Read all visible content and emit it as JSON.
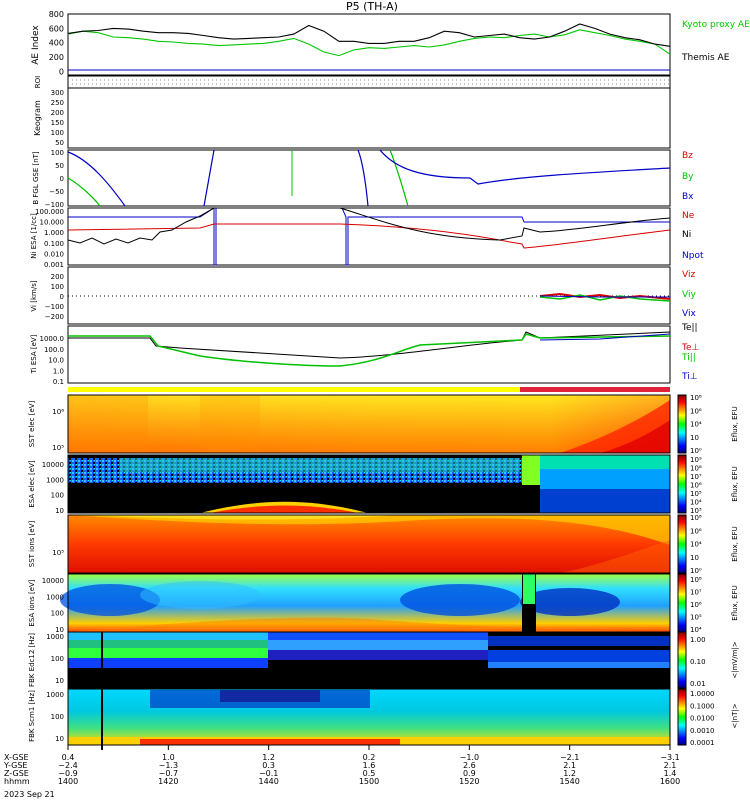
{
  "title": "P5 (TH-A)",
  "chart_data": [
    {
      "type": "line",
      "panel": "ae",
      "ylabel": "AE Index",
      "ylim": [
        -50,
        800
      ],
      "yticks": [
        "800",
        "600",
        "400",
        "200",
        "0"
      ],
      "yticks_v": [
        800,
        600,
        400,
        200,
        0
      ],
      "x": [
        1400,
        1405,
        1410,
        1415,
        1420,
        1425,
        1430,
        1435,
        1440,
        1445,
        1450,
        1455,
        1460,
        1465,
        1470,
        1475,
        1480,
        1485,
        1490,
        1495,
        1500,
        1505,
        1510,
        1515,
        1520,
        1525,
        1530,
        1535,
        1540,
        1545,
        1550,
        1555,
        1560,
        1565,
        1570,
        1575,
        1580,
        1585,
        1590,
        1595,
        1600
      ],
      "series": [
        {
          "name": "Kyoto proxy AE",
          "color": "#00c800",
          "values": [
            520,
            560,
            540,
            480,
            470,
            450,
            420,
            410,
            390,
            380,
            360,
            370,
            380,
            390,
            420,
            460,
            380,
            270,
            220,
            300,
            330,
            320,
            340,
            360,
            340,
            370,
            420,
            460,
            480,
            470,
            500,
            520,
            480,
            510,
            580,
            540,
            500,
            450,
            420,
            380,
            240
          ]
        },
        {
          "name": "Themis AE",
          "color": "#000000",
          "values": [
            530,
            560,
            570,
            600,
            590,
            560,
            540,
            540,
            530,
            500,
            470,
            450,
            460,
            470,
            480,
            520,
            640,
            560,
            420,
            420,
            390,
            390,
            420,
            420,
            470,
            560,
            540,
            480,
            500,
            520,
            470,
            450,
            480,
            560,
            660,
            600,
            520,
            470,
            440,
            380,
            350
          ]
        }
      ]
    },
    {
      "type": "line",
      "panel": "b",
      "ylabel": "B FGL GSE [nT]",
      "ylim": [
        -100,
        100
      ],
      "yticks": [
        "100",
        "50",
        "0",
        "−50",
        "−100"
      ],
      "yticks_v": [
        100,
        50,
        0,
        -50,
        -100
      ],
      "series": [
        {
          "name": "Bz",
          "color": "#d80000",
          "values": []
        },
        {
          "name": "By",
          "color": "#00c000",
          "values": []
        },
        {
          "name": "Bx",
          "color": "#0000c8",
          "values": []
        }
      ]
    },
    {
      "type": "line",
      "panel": "density",
      "ylabel": "Ni ESA [1/cc]",
      "yscale": "log",
      "ylim": [
        0.001,
        100
      ],
      "yticks": [
        "100.000",
        "10.000",
        "1.000",
        "0.100",
        "0.010",
        "0.001"
      ],
      "series": [
        {
          "name": "Ne",
          "color": "#d80000"
        },
        {
          "name": "Ni",
          "color": "#000000"
        },
        {
          "name": "Npot",
          "color": "#0000c8"
        }
      ]
    },
    {
      "type": "scatter",
      "panel": "velocity",
      "ylabel": "Vi [km/s]",
      "ylim": [
        -300,
        300
      ],
      "yticks": [
        "200",
        "100",
        "0",
        "−100",
        "−200"
      ],
      "yticks_v": [
        200,
        100,
        0,
        -100,
        -200
      ],
      "series": [
        {
          "name": "Viz",
          "color": "#d80000"
        },
        {
          "name": "Viy",
          "color": "#00c000"
        },
        {
          "name": "Vix",
          "color": "#0000c8"
        }
      ]
    },
    {
      "type": "line",
      "panel": "temperature",
      "ylabel": "Ti ESA [eV]",
      "yscale": "log",
      "ylim": [
        0.1,
        10000
      ],
      "yticks": [
        "1000.0",
        "100.0",
        "10.0",
        "1.0",
        "0.1"
      ],
      "series": [
        {
          "name": "Te||",
          "color": "#000000"
        },
        {
          "name": "Te⊥",
          "color": "#d80000"
        },
        {
          "name": "Ti||",
          "color": "#00c000"
        },
        {
          "name": "Ti⊥",
          "color": "#0000c8"
        }
      ]
    },
    {
      "type": "heatmap",
      "panel": "sst_e",
      "ylabel": "SST elec [eV]",
      "yticks": [
        "10⁶",
        "10⁵"
      ],
      "zlabel": "Eflux, EFU",
      "zticks": [
        "10⁸",
        "10⁶",
        "10⁴",
        "10⁲",
        "10⁰"
      ]
    },
    {
      "type": "heatmap",
      "panel": "esa_e",
      "ylabel": "ESA elec [eV]",
      "yticks": [
        "10000",
        "1000",
        "100",
        "10"
      ],
      "zlabel": "Eflux, EFU",
      "zticks": [
        "10⁹",
        "10⁸",
        "10⁷",
        "10⁶",
        "10⁵",
        "10⁴",
        "10³"
      ]
    },
    {
      "type": "heatmap",
      "panel": "sst_i",
      "ylabel": "SST ions [eV]",
      "yticks": [
        "10⁵"
      ],
      "zlabel": "Eflux, EFU",
      "zticks": [
        "10⁸",
        "10⁶",
        "10⁴",
        "10⁲",
        "10⁰"
      ]
    },
    {
      "type": "heatmap",
      "panel": "esa_i",
      "ylabel": "ESA ions [eV]",
      "yticks": [
        "10000",
        "1000",
        "100",
        "10"
      ],
      "zlabel": "Eflux, EFU",
      "zticks": [
        "10⁸",
        "10⁷",
        "10⁶",
        "10⁵",
        "10⁴"
      ]
    },
    {
      "type": "heatmap",
      "panel": "fbk_e",
      "ylabel": "FBK Edc12 [Hz]",
      "yticks": [
        "1000",
        "100",
        "10"
      ],
      "zlabel": "<|mV/m|>",
      "zticks": [
        "1.00",
        "0.10",
        "0.01"
      ]
    },
    {
      "type": "heatmap",
      "panel": "fbk_b",
      "ylabel": "FBK Scm1 [Hz]",
      "yticks": [
        "1000",
        "100",
        "10"
      ],
      "zlabel": "<|nT|>",
      "zticks": [
        "1.0000",
        "0.1000",
        "0.0100",
        "0.0010",
        "0.0001"
      ]
    }
  ],
  "keogram": {
    "label": "Keogram",
    "roi_label": "ROI",
    "yticks": [
      "300",
      "250",
      "200",
      "150",
      "100",
      "50"
    ]
  },
  "bars": {
    "flux_bar_left": "#ffff00",
    "flux_bar_right": "#e0223a"
  },
  "ephemeris": {
    "rows": [
      {
        "label": "X-GSE",
        "values": [
          "0.4",
          "1.0",
          "1.2",
          "0.2",
          "−1.0",
          "−2.1",
          "−3.1"
        ]
      },
      {
        "label": "Y-GSE",
        "values": [
          "−2.4",
          "−1.3",
          "0.3",
          "1.6",
          "2.6",
          "2.1",
          "2.1"
        ]
      },
      {
        "label": "Z-GSE",
        "values": [
          "−0.9",
          "−0.7",
          "−0.1",
          "0.5",
          "0.9",
          "1.2",
          "1.4"
        ]
      },
      {
        "label": "hhmm",
        "values": [
          "1400",
          "1420",
          "1440",
          "1500",
          "1520",
          "1540",
          "1600"
        ]
      }
    ],
    "date": "2023 Sep 21"
  }
}
